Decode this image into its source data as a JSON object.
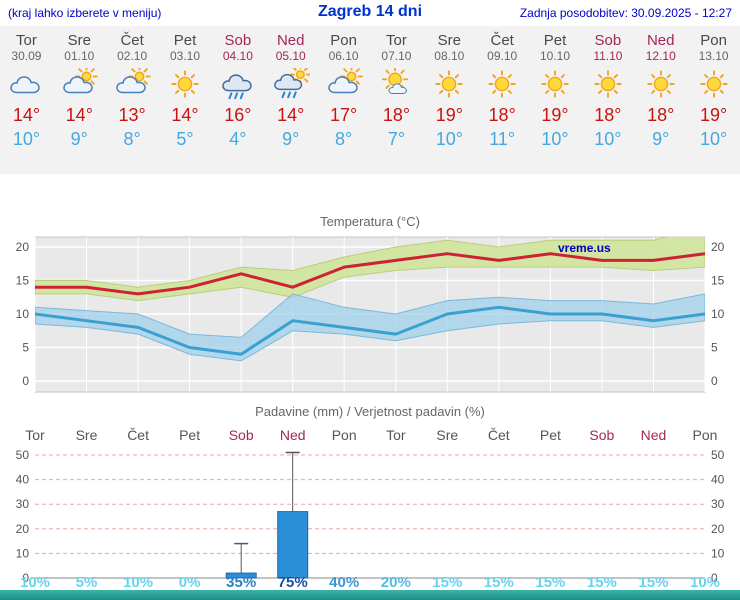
{
  "header": {
    "left": "(kraj lahko izberete v meniju)",
    "title": "Zagreb 14 dni",
    "updated": "Zadnja posodobitev: 30.09.2025 - 12:27"
  },
  "colors": {
    "accent_blue": "#0033cc",
    "max_temp_red": "#cc1111",
    "min_temp_blue": "#44a8e0",
    "weekend_red": "#a5265a",
    "footer_teal": "#2aa399"
  },
  "days": [
    {
      "name": "Tor",
      "date": "30.09",
      "weekend": false,
      "icon": "cloud",
      "tmax": "14°",
      "tmin": "10°"
    },
    {
      "name": "Sre",
      "date": "01.10",
      "weekend": false,
      "icon": "sun-cloud",
      "tmax": "14°",
      "tmin": "9°"
    },
    {
      "name": "Čet",
      "date": "02.10",
      "weekend": false,
      "icon": "sun-cloud",
      "tmax": "13°",
      "tmin": "8°"
    },
    {
      "name": "Pet",
      "date": "03.10",
      "weekend": false,
      "icon": "sun",
      "tmax": "14°",
      "tmin": "5°"
    },
    {
      "name": "Sob",
      "date": "04.10",
      "weekend": true,
      "icon": "rain",
      "tmax": "16°",
      "tmin": "4°"
    },
    {
      "name": "Ned",
      "date": "05.10",
      "weekend": true,
      "icon": "rain-sun",
      "tmax": "14°",
      "tmin": "9°"
    },
    {
      "name": "Pon",
      "date": "06.10",
      "weekend": false,
      "icon": "sun-cloud",
      "tmax": "17°",
      "tmin": "8°"
    },
    {
      "name": "Tor",
      "date": "07.10",
      "weekend": false,
      "icon": "mostly-sunny",
      "tmax": "18°",
      "tmin": "7°"
    },
    {
      "name": "Sre",
      "date": "08.10",
      "weekend": false,
      "icon": "sun",
      "tmax": "19°",
      "tmin": "10°"
    },
    {
      "name": "Čet",
      "date": "09.10",
      "weekend": false,
      "icon": "sun",
      "tmax": "18°",
      "tmin": "11°"
    },
    {
      "name": "Pet",
      "date": "10.10",
      "weekend": false,
      "icon": "sun",
      "tmax": "19°",
      "tmin": "10°"
    },
    {
      "name": "Sob",
      "date": "11.10",
      "weekend": true,
      "icon": "sun",
      "tmax": "18°",
      "tmin": "10°"
    },
    {
      "name": "Ned",
      "date": "12.10",
      "weekend": true,
      "icon": "sun",
      "tmax": "18°",
      "tmin": "9°"
    },
    {
      "name": "Pon",
      "date": "13.10",
      "weekend": false,
      "icon": "sun",
      "tmax": "19°",
      "tmin": "10°"
    }
  ],
  "chart_data": [
    {
      "type": "line",
      "title": "Temperatura (°C)",
      "watermark": "vreme.us",
      "categories": [
        "Tor 30.09",
        "Sre 01.10",
        "Čet 02.10",
        "Pet 03.10",
        "Sob 04.10",
        "Ned 05.10",
        "Pon 06.10",
        "Tor 07.10",
        "Sre 08.10",
        "Čet 09.10",
        "Pet 10.10",
        "Sob 11.10",
        "Ned 12.10",
        "Pon 13.10"
      ],
      "ylim": [
        -2,
        22
      ],
      "yticks": [
        0,
        5,
        10,
        15,
        20
      ],
      "grid": true,
      "series": [
        {
          "name": "max-temperature",
          "color": "#cc2233",
          "values": [
            14,
            14,
            13,
            14,
            16,
            14,
            17,
            18,
            19,
            18,
            19,
            18,
            18,
            19
          ]
        },
        {
          "name": "min-temperature",
          "color": "#3aa0d2",
          "values": [
            10,
            9,
            8,
            5,
            4,
            9,
            8,
            7,
            10,
            11,
            10,
            10,
            9,
            10
          ]
        },
        {
          "name": "max-temperature-range-upper",
          "color": "#cfe49a",
          "values": [
            15,
            15,
            14,
            15,
            17,
            16.5,
            18.5,
            20,
            21,
            20,
            21,
            21,
            21,
            23
          ]
        },
        {
          "name": "max-temperature-range-lower",
          "color": "#cfe49a",
          "values": [
            13,
            13,
            12,
            13,
            14,
            12.5,
            15.5,
            16.5,
            17,
            17,
            17,
            17,
            16.5,
            17
          ]
        },
        {
          "name": "min-temperature-range-upper",
          "color": "#9fd0ea",
          "values": [
            11,
            10.5,
            10,
            7,
            6.5,
            13,
            11,
            10,
            12,
            12.5,
            12,
            12,
            11.5,
            13
          ]
        },
        {
          "name": "min-temperature-range-lower",
          "color": "#9fd0ea",
          "values": [
            8.5,
            8,
            7,
            4,
            3,
            7.5,
            7,
            6,
            7.5,
            8.5,
            9,
            9,
            8,
            9
          ]
        }
      ]
    },
    {
      "type": "bar",
      "title": "Padavine (mm) / Verjetnost padavin (%)",
      "categories": [
        "Tor",
        "Sre",
        "Čet",
        "Pet",
        "Sob",
        "Ned",
        "Pon",
        "Tor",
        "Sre",
        "Čet",
        "Pet",
        "Sob",
        "Ned",
        "Pon"
      ],
      "values": [
        0,
        0,
        0,
        0,
        2,
        27,
        0,
        0,
        0,
        0,
        0,
        0,
        0,
        0
      ],
      "whisker_max": [
        0,
        0,
        0,
        0,
        14,
        51,
        0,
        0,
        0,
        0,
        0,
        0,
        0,
        0
      ],
      "probability": [
        "10%",
        "5%",
        "10%",
        "0%",
        "35%",
        "75%",
        "40%",
        "20%",
        "15%",
        "15%",
        "15%",
        "15%",
        "15%",
        "10%"
      ],
      "probability_colors": [
        "#66d4ee",
        "#66d4ee",
        "#66d4ee",
        "#66d4ee",
        "#2f7fc1",
        "#1a4fa0",
        "#3b96d2",
        "#55bbe4",
        "#66d4ee",
        "#66d4ee",
        "#66d4ee",
        "#66d4ee",
        "#66d4ee",
        "#66d4ee"
      ],
      "ylim": [
        0,
        52
      ],
      "yticks": [
        0,
        10,
        20,
        30,
        40,
        50
      ],
      "bar_color": "#2b8fd8"
    }
  ]
}
